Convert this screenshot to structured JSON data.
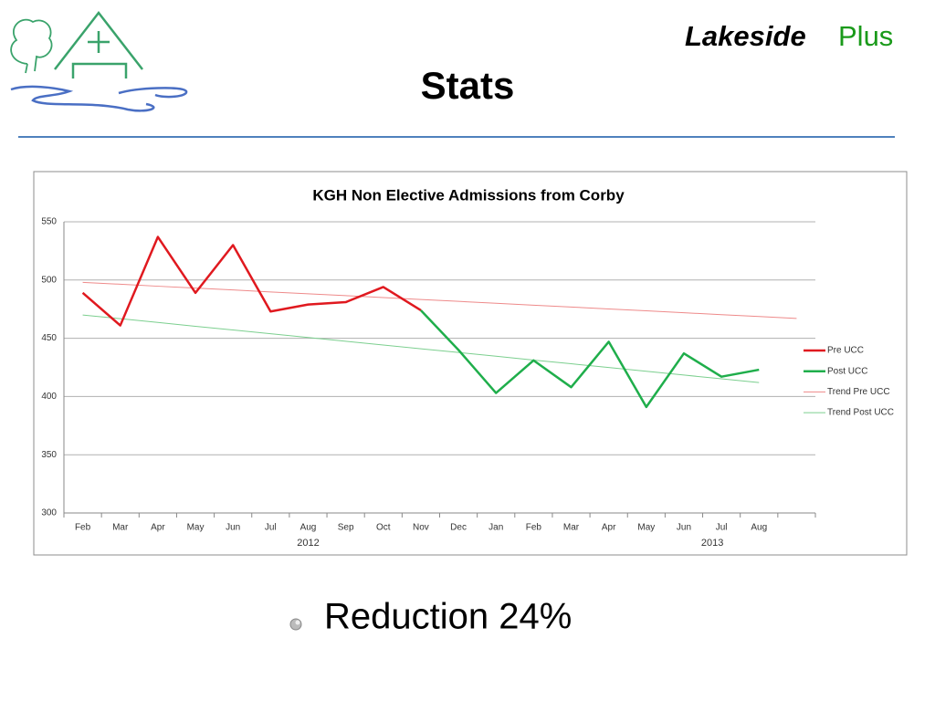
{
  "header": {
    "brand": "Lakeside",
    "brand_suffix": "Plus",
    "title": "Stats"
  },
  "chart_data": {
    "type": "line",
    "title": "KGH Non Elective Admissions from Corby",
    "categories": [
      "Feb",
      "Mar",
      "Apr",
      "May",
      "Jun",
      "Jul",
      "Aug",
      "Sep",
      "Oct",
      "Nov",
      "Dec",
      "Jan",
      "Feb",
      "Mar",
      "Apr",
      "May",
      "Jun",
      "Jul",
      "Aug",
      null
    ],
    "x_group_labels": [
      "2012",
      "2013"
    ],
    "series": [
      {
        "name": "Pre UCC",
        "color": "#e0191f",
        "line_width": 2.5,
        "values": [
          489,
          461,
          537,
          489,
          530,
          473,
          479,
          481,
          494,
          474,
          null,
          null,
          null,
          null,
          null,
          null,
          null,
          null,
          null,
          null
        ]
      },
      {
        "name": "Post UCC",
        "color": "#1fae4b",
        "line_width": 2.5,
        "values": [
          null,
          null,
          null,
          null,
          null,
          null,
          null,
          null,
          null,
          474,
          440,
          403,
          431,
          408,
          447,
          391,
          437,
          417,
          423,
          null
        ]
      },
      {
        "name": "Trend Pre UCC",
        "color": "#ee8a8a",
        "line_width": 1,
        "values": [
          498,
          496.4,
          494.7,
          493.1,
          491.5,
          489.8,
          488.2,
          486.6,
          485.0,
          483.3,
          481.7,
          480.1,
          478.4,
          476.8,
          475.2,
          473.6,
          471.9,
          470.3,
          468.7,
          467.0
        ]
      },
      {
        "name": "Trend Post UCC",
        "color": "#7ccf8f",
        "line_width": 1,
        "values": [
          470,
          466.8,
          463.6,
          460.3,
          457.1,
          453.9,
          450.7,
          447.4,
          444.2,
          441.0,
          437.8,
          434.6,
          431.3,
          428.1,
          424.9,
          421.7,
          418.4,
          415.2,
          412.0,
          null
        ]
      }
    ],
    "ylim": [
      300,
      550
    ],
    "yticks": [
      300,
      350,
      400,
      450,
      500,
      550
    ],
    "grid": true,
    "legend": "right"
  },
  "bullet": "Reduction 24%"
}
